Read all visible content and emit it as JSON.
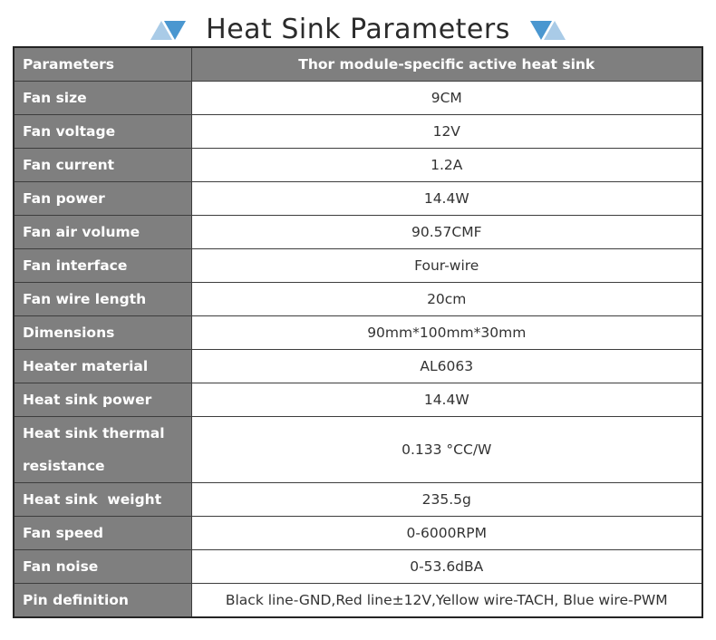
{
  "title": "Heat Sink Parameters",
  "colors": {
    "cell_gray": "#7f7f7f",
    "border_dark": "#3d3d3d",
    "triangle_light": "#a9cbe7",
    "triangle_dark": "#4a97d0",
    "title_text": "#2b2b2b",
    "value_text": "#333333"
  },
  "table": {
    "header": {
      "param": "Parameters",
      "value": "Thor module-specific active heat sink"
    },
    "rows": [
      {
        "label": "Fan size",
        "value": "9CM"
      },
      {
        "label": "Fan voltage",
        "value": "12V"
      },
      {
        "label": "Fan current",
        "value": "1.2A"
      },
      {
        "label": "Fan power",
        "value": "14.4W"
      },
      {
        "label": "Fan air volume",
        "value": "90.57CMF"
      },
      {
        "label": "Fan interface",
        "value": "Four-wire"
      },
      {
        "label": "Fan wire length",
        "value": "20cm"
      },
      {
        "label": "Dimensions",
        "value": "90mm*100mm*30mm"
      },
      {
        "label": "Heater material",
        "value": "AL6063"
      },
      {
        "label": "Heat sink power",
        "value": "14.4W"
      },
      {
        "label": "Heat sink thermal resistance",
        "value": "0.133 °CC/W"
      },
      {
        "label": "Heat sink  weight",
        "value": "235.5g"
      },
      {
        "label": "Fan speed",
        "value": "0-6000RPM"
      },
      {
        "label": "Fan noise",
        "value": "0-53.6dBA"
      },
      {
        "label": "Pin definition",
        "value": "Black line-GND,Red line±12V,Yellow wire-TACH, Blue wire-PWM"
      }
    ]
  }
}
